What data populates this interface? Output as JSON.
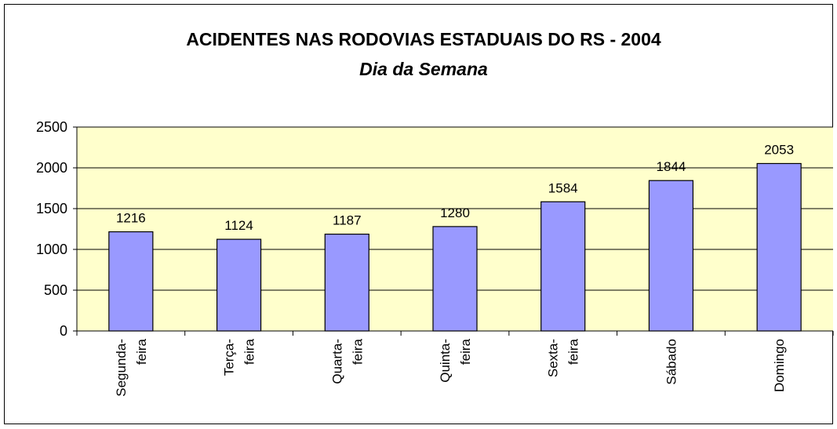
{
  "chart_data": {
    "type": "bar",
    "title": "ACIDENTES NAS RODOVIAS ESTADUAIS DO RS - 2004",
    "subtitle": "Dia da Semana",
    "categories": [
      "Segunda-feira",
      "Terça-feira",
      "Quarta-feira",
      "Quinta-feira",
      "Sexta-feira",
      "Sábado",
      "Domingo"
    ],
    "values": [
      1216,
      1124,
      1187,
      1280,
      1584,
      1844,
      2053
    ],
    "color": "#9999ff",
    "ylim": [
      0,
      2500
    ],
    "yticks": [
      0,
      500,
      1000,
      1500,
      2000,
      2500
    ],
    "grid": true
  }
}
